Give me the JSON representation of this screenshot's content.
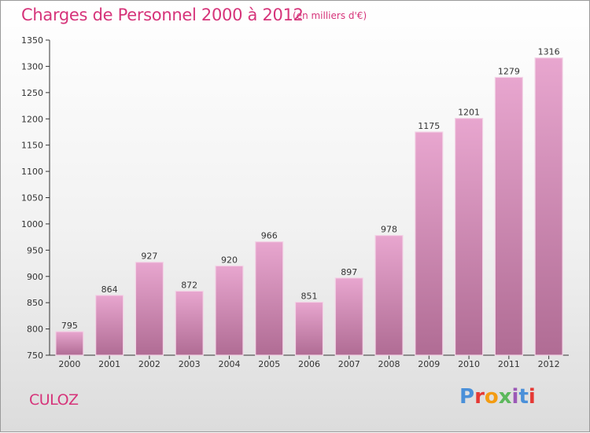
{
  "header": {
    "title": "Charges de Personnel 2000 à 2012",
    "subtitle": "(en milliers d'€)"
  },
  "footer": {
    "commune": "CULOZ",
    "brand": "Proxiti"
  },
  "colors": {
    "title": "#d6347a",
    "bar_top": "#e8a6cf",
    "bar_bottom": "#b06c94",
    "brand_letters": [
      "#4a90d9",
      "#e53935",
      "#f39c12",
      "#5cb85c",
      "#9b59b6",
      "#4a90d9",
      "#e53935"
    ]
  },
  "chart_data": {
    "type": "bar",
    "title": "Charges de Personnel 2000 à 2012",
    "subtitle": "(en milliers d'€)",
    "xlabel": "",
    "ylabel": "",
    "categories": [
      "2000",
      "2001",
      "2002",
      "2003",
      "2004",
      "2005",
      "2006",
      "2007",
      "2008",
      "2009",
      "2010",
      "2011",
      "2012"
    ],
    "values": [
      795,
      864,
      927,
      872,
      920,
      966,
      851,
      897,
      978,
      1175,
      1201,
      1279,
      1316
    ],
    "ylim": [
      750,
      1350
    ],
    "yticks": [
      750,
      800,
      850,
      900,
      950,
      1000,
      1050,
      1100,
      1150,
      1200,
      1250,
      1300,
      1350
    ],
    "grid": false,
    "legend": "none"
  }
}
